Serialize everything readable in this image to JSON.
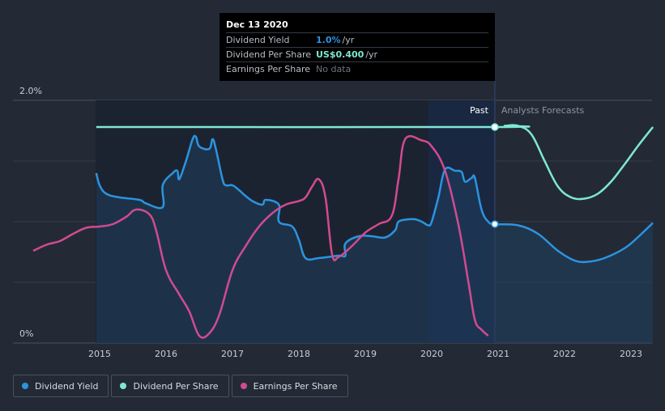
{
  "tooltip": {
    "date": "Dec 13 2020",
    "rows": [
      {
        "label": "Dividend Yield",
        "value": "1.0%",
        "unit": "/yr",
        "color": "#2b94e0"
      },
      {
        "label": "Dividend Per Share",
        "value": "US$0.400",
        "unit": "/yr",
        "color": "#7ee8d6"
      },
      {
        "label": "Earnings Per Share",
        "value": "No data",
        "unit": "",
        "color": "#6c7380"
      }
    ]
  },
  "labels": {
    "past": "Past",
    "forecast": "Analysts Forecasts"
  },
  "legend": [
    {
      "label": "Dividend Yield",
      "color": "#2b94e0"
    },
    {
      "label": "Dividend Per Share",
      "color": "#7ee8d6"
    },
    {
      "label": "Earnings Per Share",
      "color": "#d14b8f"
    }
  ],
  "chart_data": {
    "type": "line",
    "x_ticks": [
      "2015",
      "2016",
      "2017",
      "2018",
      "2019",
      "2020",
      "2021",
      "2022",
      "2023"
    ],
    "y_ticks": [
      "2.0%",
      "0%"
    ],
    "ylim": [
      0,
      2.0
    ],
    "xlim": [
      2014.0,
      2023.33
    ],
    "past_end": 2020.95,
    "shaded_start": 2019.95,
    "series": [
      {
        "name": "Dividend Yield",
        "color": "#2b94e0",
        "axis": "y",
        "points": [
          [
            2014.95,
            1.4
          ],
          [
            2015.0,
            1.3
          ],
          [
            2015.1,
            1.23
          ],
          [
            2015.3,
            1.2
          ],
          [
            2015.6,
            1.18
          ],
          [
            2015.7,
            1.15
          ],
          [
            2015.95,
            1.12
          ],
          [
            2015.95,
            1.3
          ],
          [
            2016.1,
            1.4
          ],
          [
            2016.17,
            1.42
          ],
          [
            2016.2,
            1.35
          ],
          [
            2016.3,
            1.5
          ],
          [
            2016.4,
            1.68
          ],
          [
            2016.45,
            1.7
          ],
          [
            2016.5,
            1.62
          ],
          [
            2016.65,
            1.6
          ],
          [
            2016.7,
            1.68
          ],
          [
            2016.75,
            1.6
          ],
          [
            2016.85,
            1.35
          ],
          [
            2016.9,
            1.3
          ],
          [
            2017.0,
            1.3
          ],
          [
            2017.1,
            1.26
          ],
          [
            2017.18,
            1.22
          ],
          [
            2017.3,
            1.17
          ],
          [
            2017.45,
            1.14
          ],
          [
            2017.5,
            1.18
          ],
          [
            2017.7,
            1.14
          ],
          [
            2017.7,
            1.0
          ],
          [
            2017.9,
            0.96
          ],
          [
            2018.0,
            0.85
          ],
          [
            2018.1,
            0.7
          ],
          [
            2018.3,
            0.7
          ],
          [
            2018.6,
            0.72
          ],
          [
            2018.7,
            0.72
          ],
          [
            2018.7,
            0.82
          ],
          [
            2018.9,
            0.88
          ],
          [
            2019.1,
            0.88
          ],
          [
            2019.3,
            0.87
          ],
          [
            2019.45,
            0.93
          ],
          [
            2019.5,
            1.0
          ],
          [
            2019.65,
            1.02
          ],
          [
            2019.75,
            1.02
          ],
          [
            2019.85,
            1.0
          ],
          [
            2019.95,
            0.97
          ],
          [
            2020.0,
            1.0
          ],
          [
            2020.1,
            1.2
          ],
          [
            2020.2,
            1.43
          ],
          [
            2020.35,
            1.42
          ],
          [
            2020.45,
            1.41
          ],
          [
            2020.5,
            1.33
          ],
          [
            2020.6,
            1.36
          ],
          [
            2020.65,
            1.36
          ],
          [
            2020.75,
            1.1
          ],
          [
            2020.85,
            1.0
          ],
          [
            2020.95,
            0.98
          ],
          [
            2021.3,
            0.97
          ],
          [
            2021.6,
            0.9
          ],
          [
            2021.9,
            0.76
          ],
          [
            2022.15,
            0.68
          ],
          [
            2022.35,
            0.67
          ],
          [
            2022.6,
            0.7
          ],
          [
            2022.9,
            0.78
          ],
          [
            2023.1,
            0.87
          ],
          [
            2023.33,
            0.99
          ]
        ]
      },
      {
        "name": "Dividend Per Share",
        "color": "#7ee8d6",
        "axis": "y",
        "points": [
          [
            2014.95,
            1.78
          ],
          [
            2020.95,
            1.78
          ],
          [
            2021.1,
            1.79
          ],
          [
            2021.3,
            1.79
          ],
          [
            2021.5,
            1.72
          ],
          [
            2021.7,
            1.5
          ],
          [
            2021.9,
            1.29
          ],
          [
            2022.1,
            1.2
          ],
          [
            2022.3,
            1.19
          ],
          [
            2022.5,
            1.23
          ],
          [
            2022.7,
            1.33
          ],
          [
            2022.9,
            1.47
          ],
          [
            2023.1,
            1.62
          ],
          [
            2023.33,
            1.78
          ]
        ]
      },
      {
        "name": "Earnings Per Share",
        "color": "#d14b8f",
        "axis": "eps",
        "points": [
          [
            2014.0,
            0.76
          ],
          [
            2014.2,
            0.81
          ],
          [
            2014.4,
            0.84
          ],
          [
            2014.6,
            0.9
          ],
          [
            2014.8,
            0.95
          ],
          [
            2015.0,
            0.96
          ],
          [
            2015.2,
            0.98
          ],
          [
            2015.4,
            1.04
          ],
          [
            2015.55,
            1.1
          ],
          [
            2015.75,
            1.06
          ],
          [
            2015.85,
            0.93
          ],
          [
            2016.0,
            0.6
          ],
          [
            2016.2,
            0.4
          ],
          [
            2016.35,
            0.26
          ],
          [
            2016.5,
            0.06
          ],
          [
            2016.65,
            0.08
          ],
          [
            2016.8,
            0.23
          ],
          [
            2017.0,
            0.6
          ],
          [
            2017.2,
            0.8
          ],
          [
            2017.4,
            0.96
          ],
          [
            2017.6,
            1.07
          ],
          [
            2017.8,
            1.14
          ],
          [
            2018.0,
            1.17
          ],
          [
            2018.1,
            1.2
          ],
          [
            2018.2,
            1.29
          ],
          [
            2018.3,
            1.35
          ],
          [
            2018.4,
            1.2
          ],
          [
            2018.5,
            0.73
          ],
          [
            2018.6,
            0.71
          ],
          [
            2018.8,
            0.8
          ],
          [
            2019.0,
            0.91
          ],
          [
            2019.2,
            0.98
          ],
          [
            2019.4,
            1.05
          ],
          [
            2019.5,
            1.35
          ],
          [
            2019.6,
            1.68
          ],
          [
            2019.85,
            1.67
          ],
          [
            2020.0,
            1.62
          ],
          [
            2020.2,
            1.42
          ],
          [
            2020.4,
            0.98
          ],
          [
            2020.55,
            0.51
          ],
          [
            2020.65,
            0.19
          ],
          [
            2020.75,
            0.11
          ],
          [
            2020.85,
            0.06
          ]
        ]
      }
    ]
  }
}
